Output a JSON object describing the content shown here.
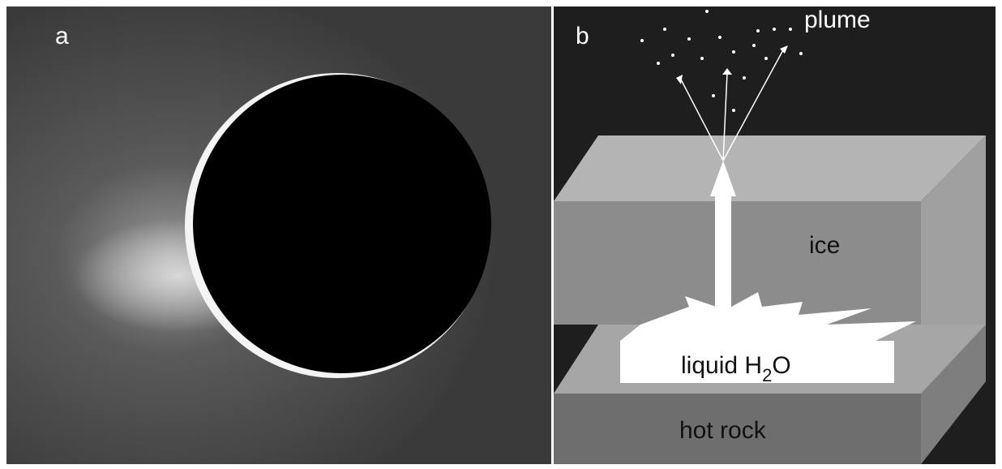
{
  "panel_a": {
    "label": "a"
  },
  "panel_b": {
    "label": "b",
    "plume": "plume",
    "ice": "ice",
    "liquid": {
      "text": "liquid H",
      "subscript": "2",
      "suffix": "O"
    },
    "rock": "hot rock"
  }
}
